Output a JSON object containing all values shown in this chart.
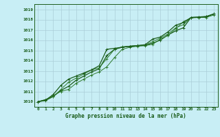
{
  "title": "Graphe pression niveau de la mer (hPa)",
  "background_color": "#c8eef5",
  "grid_color": "#aacdd8",
  "line_color_dark": "#1a5c1a",
  "line_color_mid": "#2d7a2d",
  "x_ticks": [
    0,
    1,
    2,
    3,
    4,
    5,
    6,
    7,
    8,
    9,
    10,
    11,
    12,
    13,
    14,
    15,
    16,
    17,
    18,
    19,
    20,
    21,
    22,
    23
  ],
  "y_ticks": [
    1010,
    1011,
    1012,
    1013,
    1014,
    1015,
    1016,
    1017,
    1018,
    1019
  ],
  "xlim": [
    -0.5,
    23.5
  ],
  "ylim": [
    1009.5,
    1019.5
  ],
  "series": [
    [
      1010.0,
      1010.2,
      1010.5,
      1011.1,
      1011.5,
      1012.1,
      1012.5,
      1012.9,
      1013.2,
      1014.5,
      1015.1,
      1015.3,
      1015.4,
      1015.45,
      1015.5,
      1015.7,
      1016.0,
      1016.5,
      1016.9,
      1017.2,
      1018.2,
      1018.25,
      1018.3,
      1018.55
    ],
    [
      1010.0,
      1010.2,
      1010.6,
      1011.0,
      1011.2,
      1011.8,
      1012.2,
      1012.6,
      1012.9,
      1013.4,
      1014.3,
      1015.1,
      1015.3,
      1015.4,
      1015.45,
      1015.6,
      1016.1,
      1016.45,
      1017.1,
      1017.8,
      1018.15,
      1018.2,
      1018.2,
      1018.45
    ],
    [
      1010.0,
      1010.1,
      1010.5,
      1011.2,
      1011.9,
      1012.3,
      1012.7,
      1013.1,
      1013.3,
      1014.2,
      1015.1,
      1015.35,
      1015.4,
      1015.45,
      1015.5,
      1015.85,
      1016.2,
      1016.6,
      1017.2,
      1017.5,
      1018.2,
      1018.2,
      1018.28,
      1018.55
    ],
    [
      1010.0,
      1010.15,
      1010.7,
      1011.6,
      1012.2,
      1012.5,
      1012.8,
      1013.1,
      1013.5,
      1015.1,
      1015.2,
      1015.3,
      1015.4,
      1015.47,
      1015.55,
      1016.1,
      1016.3,
      1016.8,
      1017.45,
      1017.7,
      1018.2,
      1018.22,
      1018.28,
      1018.55
    ]
  ],
  "fig_width": 3.2,
  "fig_height": 2.0,
  "dpi": 100
}
